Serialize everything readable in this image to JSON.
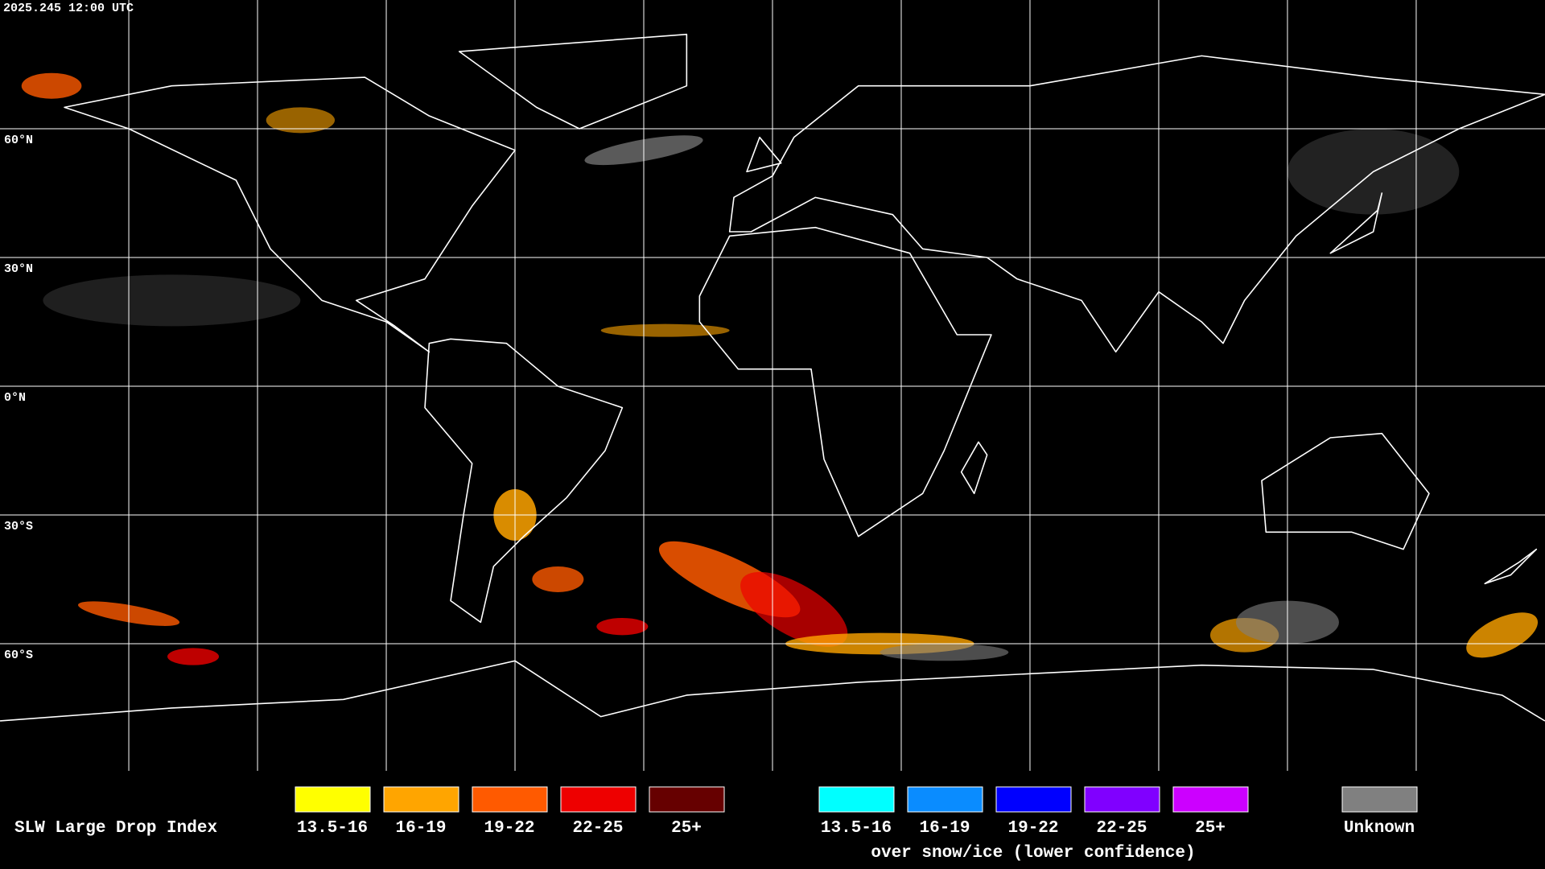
{
  "header": {
    "timestamp": "2025.245 12:00 UTC"
  },
  "map": {
    "lat_labels": [
      "60°N",
      "30°N",
      "0°N",
      "30°S",
      "60°S"
    ]
  },
  "legend": {
    "title": "SLW Large Drop Index",
    "items": [
      {
        "label": "13.5-16",
        "color": "#ffff00"
      },
      {
        "label": "16-19",
        "color": "#ffa500"
      },
      {
        "label": "19-22",
        "color": "#ff5a00"
      },
      {
        "label": "22-25",
        "color": "#ee0000"
      },
      {
        "label": "25+",
        "color": "#660000"
      }
    ],
    "snow_items": [
      {
        "label": "13.5-16",
        "color": "#00ffff"
      },
      {
        "label": "16-19",
        "color": "#0a8cff"
      },
      {
        "label": "19-22",
        "color": "#0000ff"
      },
      {
        "label": "22-25",
        "color": "#8000ff"
      },
      {
        "label": "25+",
        "color": "#cc00ff"
      }
    ],
    "snow_caption": "over snow/ice (lower confidence)",
    "unknown": {
      "label": "Unknown",
      "color": "#808080"
    }
  }
}
